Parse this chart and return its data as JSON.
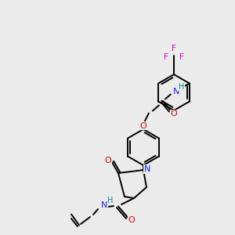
{
  "bg_color": "#ebebeb",
  "bond_color": "#000000",
  "bond_width": 1.4,
  "atom_colors": {
    "C": "#000000",
    "N": "#1a1aff",
    "O": "#dd0000",
    "H": "#008888",
    "F": "#cc00cc"
  },
  "figsize": [
    3.0,
    3.0
  ],
  "dpi": 100
}
